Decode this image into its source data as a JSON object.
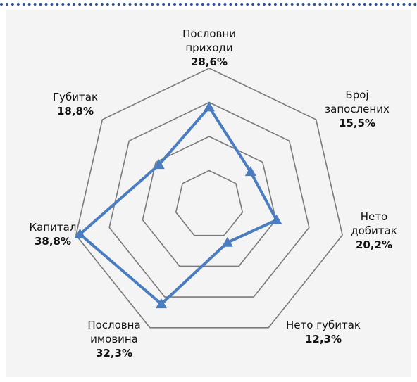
{
  "chart_data": {
    "type": "radar",
    "categories": [
      "Пословни приходи",
      "Број запослених",
      "Нето добитак",
      "Нето губитак",
      "Пословна имовина",
      "Капитал",
      "Губитак"
    ],
    "series": [
      {
        "name": null,
        "color": "#4a7cc0",
        "values": [
          28.6,
          15.5,
          20.2,
          12.3,
          32.3,
          38.8,
          18.8
        ],
        "value_labels": [
          "28,6%",
          "15,5%",
          "20,2%",
          "12,3%",
          "32,3%",
          "38,8%",
          "18,8%"
        ]
      }
    ],
    "ylim": [
      0,
      40
    ],
    "yticks": [
      10,
      20,
      30,
      40
    ],
    "grid": true
  }
}
